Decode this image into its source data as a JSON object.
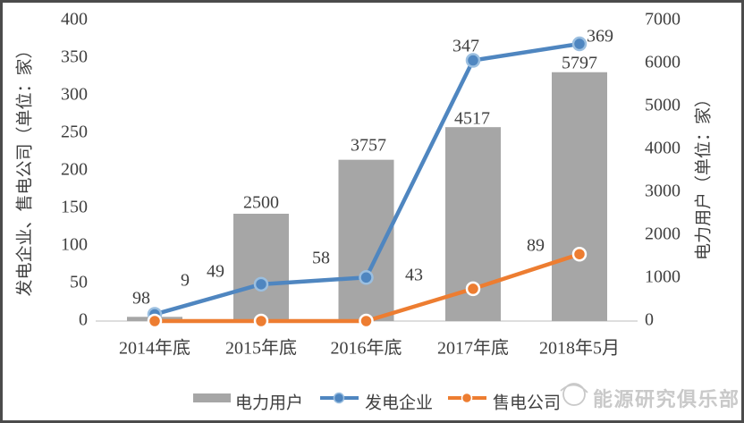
{
  "window": {
    "background": "#ffffff",
    "border_color": "#4b4b4b",
    "text_color": "#3f3f3f"
  },
  "chart_data": {
    "type": "combo",
    "categories": [
      "2014年底",
      "2015年底",
      "2016年底",
      "2017年底",
      "2018年5月"
    ],
    "series": [
      {
        "name": "电力用户",
        "type": "bar",
        "axis": "right",
        "color": "#a6a6a6",
        "values": [
          98,
          2500,
          3757,
          4517,
          5797
        ],
        "labels": [
          "98",
          "2500",
          "3757",
          "4517",
          "5797"
        ]
      },
      {
        "name": "发电企业",
        "type": "line",
        "axis": "left",
        "color": "#4f86c0",
        "marker_fill": "#4f86c0",
        "marker_ring": "#9bbfe0",
        "values": [
          9,
          49,
          58,
          347,
          369
        ],
        "labels": [
          "9",
          "49",
          "58",
          "347",
          "369"
        ]
      },
      {
        "name": "售电公司",
        "type": "line",
        "axis": "left",
        "color": "#ed7d31",
        "marker_fill": "#ed7d31",
        "marker_ring": "#ffffff",
        "values": [
          0,
          0,
          0,
          43,
          89
        ],
        "labels": [
          null,
          null,
          null,
          "43",
          "89"
        ]
      }
    ],
    "left_axis": {
      "title": "发电企业、售电公司（单位：家）",
      "min": 0,
      "max": 400,
      "step": 50,
      "ticks": [
        0,
        50,
        100,
        150,
        200,
        250,
        300,
        350,
        400
      ]
    },
    "right_axis": {
      "title": "电力用户（单位：家）",
      "min": 0,
      "max": 7000,
      "step": 1000,
      "ticks": [
        0,
        1000,
        2000,
        3000,
        4000,
        5000,
        6000,
        7000
      ]
    },
    "legend": {
      "position": "bottom",
      "entries": [
        "电力用户",
        "发电企业",
        "售电公司"
      ]
    },
    "grid": false,
    "axis_line_color": "#c9c9c9"
  },
  "watermark": {
    "text": "能源研究俱乐部",
    "color": "#c9c9c9",
    "icon": "globe-logo-icon"
  }
}
